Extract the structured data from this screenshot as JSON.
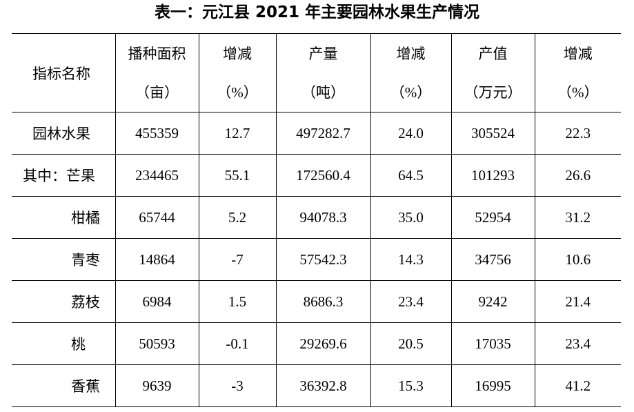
{
  "title": "表一：元江县 2021 年主要园林水果生产情况",
  "table": {
    "header": {
      "name": "指标名称",
      "columns": [
        [
          "播种面积",
          "（亩）"
        ],
        [
          "增减",
          "（%）"
        ],
        [
          "产量",
          "（吨）"
        ],
        [
          "增减",
          "（%）"
        ],
        [
          "产值",
          "（万元）"
        ],
        [
          "增减",
          "（%）"
        ]
      ]
    },
    "rows": [
      [
        "园林水果",
        "455359",
        "12.7",
        "497282.7",
        "24.0",
        "305524",
        "22.3"
      ],
      [
        "其中：芒果",
        "234465",
        "55.1",
        "172560.4",
        "64.5",
        "101293",
        "26.6"
      ],
      [
        "柑橘",
        "65744",
        "5.2",
        "94078.3",
        "35.0",
        "52954",
        "31.2"
      ],
      [
        "青枣",
        "14864",
        "-7",
        "57542.3",
        "14.3",
        "34756",
        "10.6"
      ],
      [
        "荔枝",
        "6984",
        "1.5",
        "8686.3",
        "23.4",
        "9242",
        "21.4"
      ],
      [
        "桃",
        "50593",
        "-0.1",
        "29269.6",
        "20.5",
        "17035",
        "23.4"
      ],
      [
        "香蕉",
        "9639",
        "-3",
        "36392.8",
        "15.3",
        "16995",
        "41.2"
      ]
    ]
  }
}
